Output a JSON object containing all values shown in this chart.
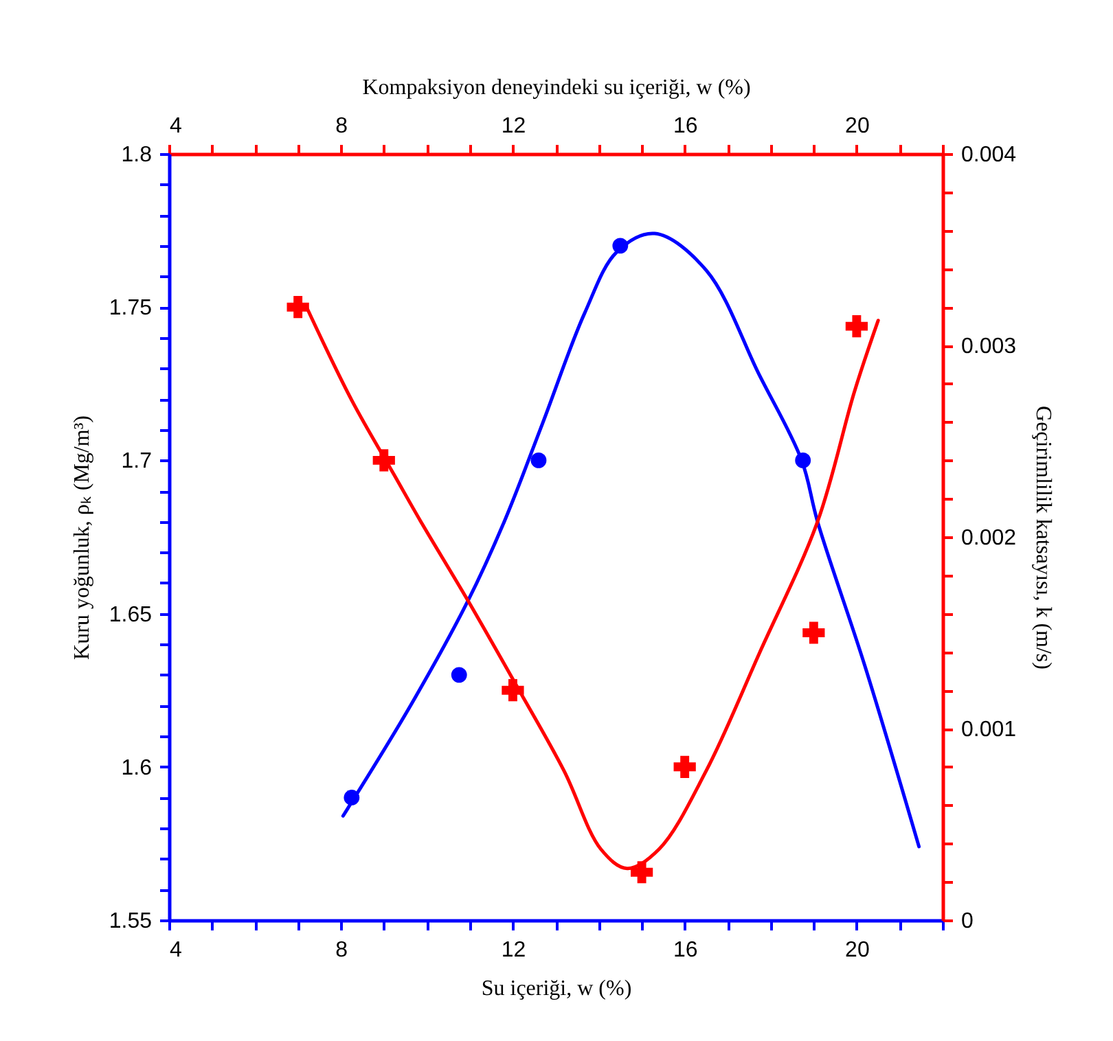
{
  "chart_data": {
    "type": "scatter",
    "title": "Kompaksiyon deneyindeki su içeriği, w (%)",
    "xlabel": "Su içeriği, w (%)",
    "ylabel": "Kuru yoğunluk, ρₖ (Mg/m³)",
    "y2label": "Geçirimlilik katsayısı, k (m/s)",
    "xlim": [
      4,
      22
    ],
    "ylim": [
      1.55,
      1.8
    ],
    "y2lim": [
      0,
      0.004
    ],
    "x2lim": [
      4,
      22
    ],
    "xticks": [
      4,
      {
        "value": 5,
        "label": null
      },
      {
        "value": 6,
        "label": null
      },
      {
        "value": 7,
        "label": null
      },
      8,
      {
        "value": 9,
        "label": null
      },
      {
        "value": 10,
        "label": null
      },
      {
        "value": 11,
        "label": null
      },
      12,
      {
        "value": 13,
        "label": null
      },
      {
        "value": 14,
        "label": null
      },
      {
        "value": 15,
        "label": null
      },
      16,
      {
        "value": 17,
        "label": null
      },
      {
        "value": 18,
        "label": null
      },
      {
        "value": 19,
        "label": null
      },
      20,
      {
        "value": 21,
        "label": null
      },
      {
        "value": 22,
        "label": null
      }
    ],
    "x2ticks": [
      4,
      {
        "value": 5,
        "label": null
      },
      {
        "value": 6,
        "label": null
      },
      {
        "value": 7,
        "label": null
      },
      8,
      {
        "value": 9,
        "label": null
      },
      {
        "value": 10,
        "label": null
      },
      {
        "value": 11,
        "label": null
      },
      12,
      {
        "value": 13,
        "label": null
      },
      {
        "value": 14,
        "label": null
      },
      {
        "value": 15,
        "label": null
      },
      16,
      {
        "value": 17,
        "label": null
      },
      {
        "value": 18,
        "label": null
      },
      {
        "value": 19,
        "label": null
      },
      20,
      {
        "value": 21,
        "label": null
      },
      {
        "value": 22,
        "label": null
      }
    ],
    "yticks": [
      1.55,
      {
        "value": 1.56,
        "label": null
      },
      {
        "value": 1.57,
        "label": null
      },
      {
        "value": 1.58,
        "label": null
      },
      {
        "value": 1.59,
        "label": null
      },
      1.6,
      {
        "value": 1.61,
        "label": null
      },
      {
        "value": 1.62,
        "label": null
      },
      {
        "value": 1.63,
        "label": null
      },
      {
        "value": 1.64,
        "label": null
      },
      1.65,
      {
        "value": 1.66,
        "label": null
      },
      {
        "value": 1.67,
        "label": null
      },
      {
        "value": 1.68,
        "label": null
      },
      {
        "value": 1.69,
        "label": null
      },
      1.7,
      {
        "value": 1.71,
        "label": null
      },
      {
        "value": 1.72,
        "label": null
      },
      {
        "value": 1.73,
        "label": null
      },
      {
        "value": 1.74,
        "label": null
      },
      1.75,
      {
        "value": 1.76,
        "label": null
      },
      {
        "value": 1.77,
        "label": null
      },
      {
        "value": 1.78,
        "label": null
      },
      {
        "value": 1.79,
        "label": null
      },
      1.8
    ],
    "y2ticks": [
      0,
      {
        "value": 0.0002,
        "label": null
      },
      {
        "value": 0.0004,
        "label": null
      },
      {
        "value": 0.0006,
        "label": null
      },
      {
        "value": 0.0008,
        "label": null
      },
      0.001,
      {
        "value": 0.0012,
        "label": null
      },
      {
        "value": 0.0014,
        "label": null
      },
      {
        "value": 0.0016,
        "label": null
      },
      {
        "value": 0.0018,
        "label": null
      },
      0.002,
      {
        "value": 0.0022,
        "label": null
      },
      {
        "value": 0.0024,
        "label": null
      },
      {
        "value": 0.0026,
        "label": null
      },
      {
        "value": 0.0028,
        "label": null
      },
      0.003,
      {
        "value": 0.0032,
        "label": null
      },
      {
        "value": 0.0034,
        "label": null
      },
      {
        "value": 0.0036,
        "label": null
      },
      {
        "value": 0.0038,
        "label": null
      },
      0.004
    ],
    "grid": false,
    "series": [
      {
        "marker": "circle",
        "color": "#0000ff",
        "x": [
          8.25,
          10.75,
          12.6,
          14.5,
          18.75
        ],
        "values": [
          1.59,
          1.63,
          1.7,
          1.77,
          1.7
        ]
      },
      {
        "type": "line",
        "marker": "none",
        "color": "#0000ff",
        "x": [
          8.05,
          9.62,
          10.95,
          11.8,
          12.69,
          13.67,
          14.42,
          15.3,
          16.5,
          17.73,
          18.72,
          19.09,
          20.19,
          21.45
        ],
        "values": [
          1.584,
          1.62,
          1.654,
          1.68,
          1.712,
          1.748,
          1.768,
          1.774,
          1.762,
          1.728,
          1.7,
          1.68,
          1.633,
          1.574
        ]
      },
      {
        "marker": "cross",
        "axis": "y2",
        "color": "#ff0000",
        "x": [
          7,
          9,
          12,
          15,
          16,
          19,
          20
        ],
        "values": [
          0.0032,
          0.0024,
          0.0012,
          0.00025,
          0.0008,
          0.0015,
          0.0031
        ]
      },
      {
        "type": "line",
        "marker": "none",
        "axis": "y2",
        "color": "#ff0000",
        "x": [
          7.2,
          8.26,
          9.25,
          9.86,
          10.95,
          12.07,
          13.19,
          14.05,
          14.66,
          15.4,
          16.5,
          17.73,
          19.09,
          19.95,
          20.5
        ],
        "values": [
          0.0032,
          0.00271,
          0.00232,
          0.00208,
          0.00167,
          0.00123,
          0.00078,
          0.00037,
          0.00027,
          0.00037,
          0.00078,
          0.00139,
          0.00208,
          0.00276,
          0.00313
        ]
      }
    ]
  }
}
